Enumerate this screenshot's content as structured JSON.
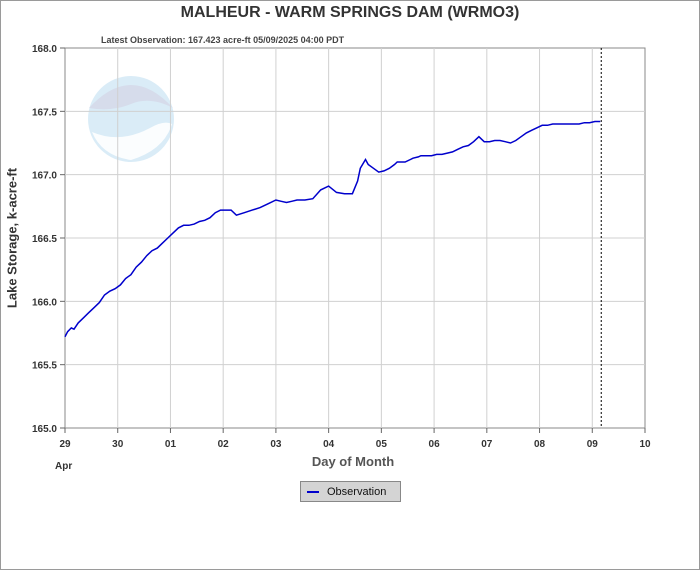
{
  "chart_data": {
    "type": "line",
    "title": "MALHEUR - WARM SPRINGS DAM  (WRMO3)",
    "subtitle": "Latest Observation: 167.423 acre-ft 05/09/2025 04:00 PDT",
    "xlabel": "Day of Month",
    "ylabel": "Lake Storage, k-acre-ft",
    "x_tick_labels": [
      "29",
      "30",
      "01",
      "02",
      "03",
      "04",
      "05",
      "06",
      "07",
      "08",
      "09",
      "10"
    ],
    "x_month_label": "Apr",
    "xlim": [
      0,
      11
    ],
    "y_tick_labels": [
      "165.0",
      "165.5",
      "166.0",
      "166.5",
      "167.0",
      "167.5",
      "168.0"
    ],
    "ylim": [
      165.0,
      168.0
    ],
    "grid": true,
    "legend_position": "bottom-center",
    "latest_observation_marker_day": 10.17,
    "series": [
      {
        "name": "Observation",
        "color": "#0000cc",
        "x": [
          0.0,
          0.05,
          0.12,
          0.17,
          0.25,
          0.35,
          0.45,
          0.55,
          0.65,
          0.75,
          0.85,
          0.95,
          1.05,
          1.15,
          1.25,
          1.35,
          1.45,
          1.55,
          1.65,
          1.75,
          1.85,
          1.95,
          2.05,
          2.15,
          2.25,
          2.35,
          2.45,
          2.55,
          2.65,
          2.75,
          2.85,
          2.95,
          3.05,
          3.15,
          3.25,
          3.4,
          3.55,
          3.7,
          3.85,
          4.0,
          4.1,
          4.2,
          4.3,
          4.4,
          4.55,
          4.7,
          4.85,
          5.0,
          5.15,
          5.3,
          5.45,
          5.55,
          5.6,
          5.7,
          5.75,
          5.85,
          5.95,
          6.05,
          6.15,
          6.25,
          6.3,
          6.35,
          6.45,
          6.55,
          6.6,
          6.7,
          6.75,
          6.85,
          6.95,
          7.05,
          7.15,
          7.25,
          7.35,
          7.45,
          7.55,
          7.65,
          7.75,
          7.85,
          7.95,
          8.05,
          8.15,
          8.25,
          8.35,
          8.45,
          8.55,
          8.65,
          8.75,
          8.85,
          8.95,
          9.05,
          9.15,
          9.25,
          9.35,
          9.45,
          9.55,
          9.65,
          9.75,
          9.85,
          9.95,
          10.05,
          10.15
        ],
        "values": [
          165.72,
          165.76,
          165.79,
          165.78,
          165.83,
          165.87,
          165.91,
          165.95,
          165.99,
          166.05,
          166.08,
          166.1,
          166.13,
          166.18,
          166.21,
          166.27,
          166.31,
          166.36,
          166.4,
          166.42,
          166.46,
          166.5,
          166.54,
          166.58,
          166.6,
          166.6,
          166.61,
          166.63,
          166.64,
          166.66,
          166.7,
          166.72,
          166.72,
          166.72,
          166.68,
          166.7,
          166.72,
          166.74,
          166.77,
          166.8,
          166.79,
          166.78,
          166.79,
          166.8,
          166.8,
          166.81,
          166.88,
          166.91,
          166.86,
          166.85,
          166.85,
          166.95,
          167.05,
          167.12,
          167.08,
          167.05,
          167.02,
          167.03,
          167.05,
          167.08,
          167.1,
          167.1,
          167.1,
          167.12,
          167.13,
          167.14,
          167.15,
          167.15,
          167.15,
          167.16,
          167.16,
          167.17,
          167.18,
          167.2,
          167.22,
          167.23,
          167.26,
          167.3,
          167.26,
          167.26,
          167.27,
          167.27,
          167.26,
          167.25,
          167.27,
          167.3,
          167.33,
          167.35,
          167.37,
          167.39,
          167.39,
          167.4,
          167.4,
          167.4,
          167.4,
          167.4,
          167.4,
          167.41,
          167.41,
          167.42,
          167.42
        ]
      }
    ]
  }
}
